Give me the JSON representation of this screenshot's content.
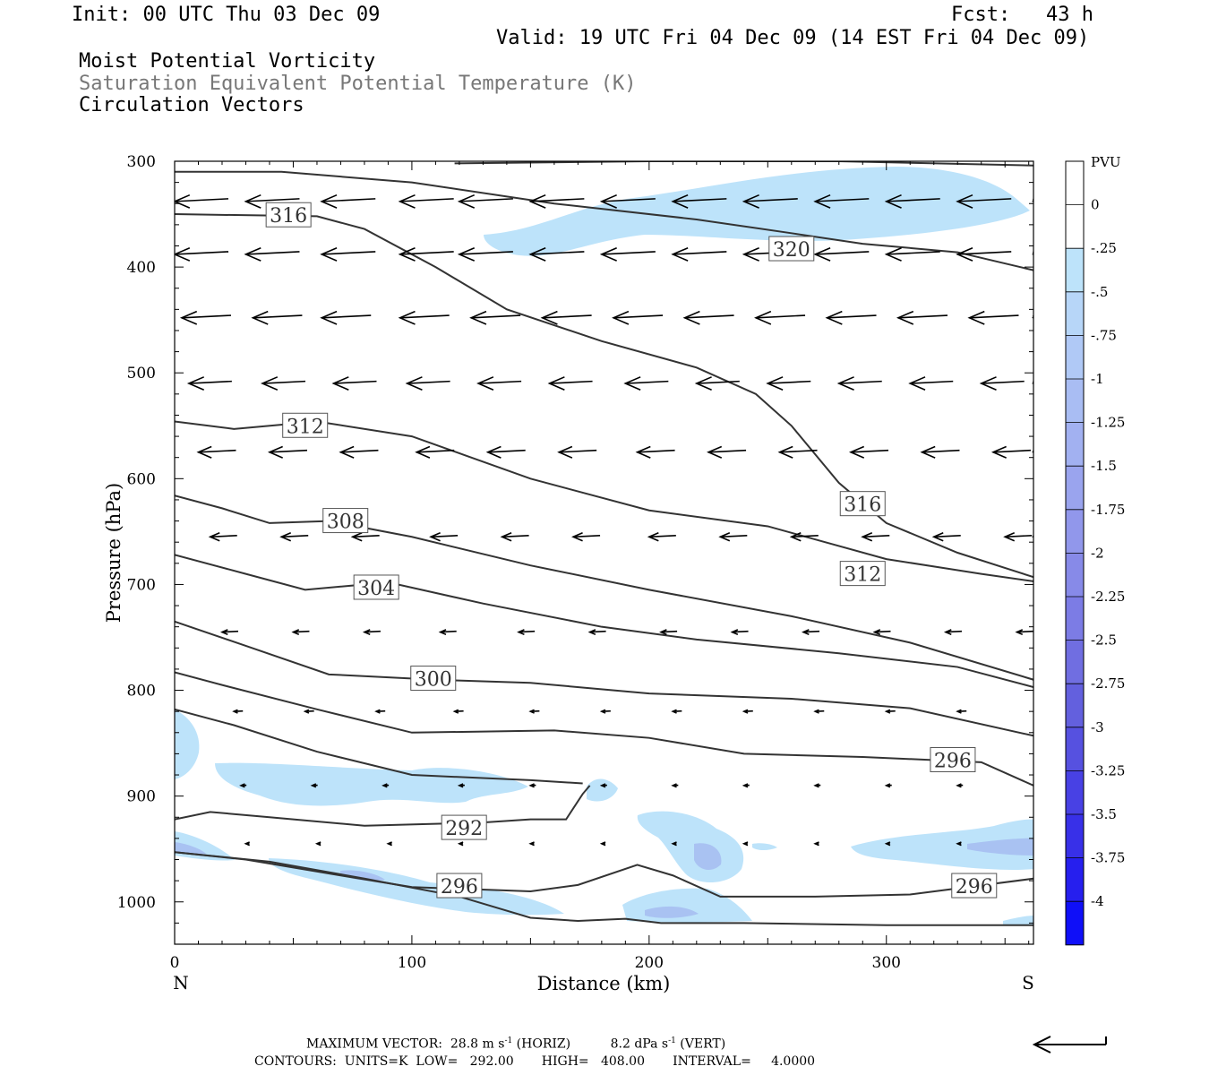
{
  "header": {
    "init": "Init: 00 UTC Thu 03 Dec 09",
    "fcst": "Fcst:   43 h",
    "valid": "Valid: 19 UTC Fri 04 Dec 09 (14 EST Fri 04 Dec 09)",
    "field1": "Moist Potential Vorticity",
    "field2": "Saturation Equivalent Potential Temperature (K)",
    "field3": "Circulation Vectors"
  },
  "footer": {
    "max_vector_label": "MAXIMUM VECTOR:",
    "max_vector_horiz": "28.8 m s",
    "horiz_tag": "(HORIZ)",
    "max_vector_vert": "8.2 dPa s",
    "vert_tag": "(VERT)",
    "exp": "-1",
    "contours": "CONTOURS:  UNITS=K  LOW=   292.00       HIGH=   408.00       INTERVAL=     4.0000"
  },
  "colors": {
    "contour": "#333333",
    "vector": "#000000",
    "pv_light": "#bde3fa",
    "pv_mid": "#a9c2f2"
  },
  "chart_data": {
    "type": "cross-section",
    "xlabel": "Distance (km)",
    "ylabel": "Pressure (hPa)",
    "xlim": [
      0,
      362
    ],
    "ylim": [
      1040,
      300
    ],
    "x_ticks": [
      {
        "v": 0,
        "label": "0"
      },
      {
        "v": 100,
        "label": "100"
      },
      {
        "v": 200,
        "label": "200"
      },
      {
        "v": 300,
        "label": "300"
      }
    ],
    "y_ticks": [
      {
        "v": 300,
        "label": "300"
      },
      {
        "v": 400,
        "label": "400"
      },
      {
        "v": 500,
        "label": "500"
      },
      {
        "v": 600,
        "label": "600"
      },
      {
        "v": 700,
        "label": "700"
      },
      {
        "v": 800,
        "label": "800"
      },
      {
        "v": 900,
        "label": "900"
      },
      {
        "v": 1000,
        "label": "1000"
      }
    ],
    "end_labels": {
      "left": "N",
      "right": "S"
    },
    "colorbar": {
      "unit": "PVU",
      "labels": [
        "0",
        "-.25",
        "-.5",
        "-.75",
        "-1",
        "-1.25",
        "-1.5",
        "-1.75",
        "-2",
        "-2.25",
        "-2.5",
        "-2.75",
        "-3",
        "-3.25",
        "-3.5",
        "-3.75",
        "-4"
      ],
      "colors": [
        "#ffffff",
        "#ffffff",
        "#bde3fa",
        "#b7d6f8",
        "#b0c9f6",
        "#a9bdf3",
        "#a2b1f1",
        "#9aa4ee",
        "#9197eb",
        "#878ae8",
        "#7c7ce5",
        "#706ee1",
        "#6360de",
        "#5651e0",
        "#4841e4",
        "#3830e8",
        "#261fee",
        "#0f0ff8"
      ]
    },
    "contours": [
      {
        "label": "320",
        "points": [
          [
            0,
            310
          ],
          [
            45,
            310
          ],
          [
            100,
            320
          ],
          [
            160,
            340
          ],
          [
            220,
            355
          ],
          [
            260,
            368
          ],
          [
            290,
            378
          ],
          [
            330,
            386
          ],
          [
            362,
            403
          ]
        ],
        "labels_at": [
          [
            260,
            383
          ]
        ]
      },
      {
        "label": "320",
        "points": [
          [
            118,
            302
          ],
          [
            200,
            300
          ],
          [
            280,
            300
          ],
          [
            362,
            304
          ]
        ],
        "labels_at": []
      },
      {
        "label": "316",
        "points": [
          [
            0,
            350
          ],
          [
            60,
            352
          ],
          [
            80,
            364
          ],
          [
            110,
            400
          ],
          [
            140,
            440
          ],
          [
            180,
            470
          ],
          [
            220,
            495
          ],
          [
            245,
            520
          ],
          [
            260,
            550
          ],
          [
            280,
            604
          ],
          [
            300,
            642
          ],
          [
            330,
            670
          ],
          [
            362,
            693
          ]
        ],
        "labels_at": [
          [
            48,
            351
          ],
          [
            290,
            624
          ]
        ]
      },
      {
        "label": "312",
        "points": [
          [
            0,
            546
          ],
          [
            25,
            553
          ],
          [
            60,
            546
          ],
          [
            100,
            560
          ],
          [
            150,
            600
          ],
          [
            200,
            630
          ],
          [
            250,
            645
          ],
          [
            300,
            676
          ],
          [
            340,
            690
          ],
          [
            362,
            697
          ]
        ],
        "labels_at": [
          [
            55,
            550
          ],
          [
            290,
            690
          ]
        ]
      },
      {
        "label": "308",
        "points": [
          [
            0,
            616
          ],
          [
            20,
            628
          ],
          [
            40,
            642
          ],
          [
            65,
            640
          ],
          [
            100,
            655
          ],
          [
            150,
            682
          ],
          [
            200,
            705
          ],
          [
            260,
            730
          ],
          [
            310,
            755
          ],
          [
            362,
            790
          ]
        ],
        "labels_at": [
          [
            72,
            640
          ]
        ]
      },
      {
        "label": "304",
        "points": [
          [
            0,
            672
          ],
          [
            30,
            690
          ],
          [
            55,
            705
          ],
          [
            90,
            698
          ],
          [
            130,
            718
          ],
          [
            180,
            740
          ],
          [
            220,
            752
          ],
          [
            280,
            765
          ],
          [
            330,
            778
          ],
          [
            362,
            797
          ]
        ],
        "labels_at": [
          [
            85,
            703
          ]
        ]
      },
      {
        "label": "300",
        "points": [
          [
            0,
            735
          ],
          [
            30,
            758
          ],
          [
            65,
            785
          ],
          [
            110,
            790
          ],
          [
            150,
            793
          ],
          [
            200,
            803
          ],
          [
            260,
            808
          ],
          [
            310,
            817
          ],
          [
            362,
            843
          ]
        ],
        "labels_at": [
          [
            109,
            789
          ]
        ]
      },
      {
        "label": "296",
        "points": [
          [
            0,
            783
          ],
          [
            20,
            795
          ],
          [
            60,
            818
          ],
          [
            100,
            840
          ],
          [
            160,
            838
          ],
          [
            200,
            845
          ],
          [
            240,
            860
          ],
          [
            290,
            863
          ],
          [
            340,
            868
          ],
          [
            362,
            890
          ]
        ],
        "labels_at": [
          [
            328,
            866
          ]
        ]
      },
      {
        "label": "296",
        "points": [
          [
            0,
            818
          ],
          [
            25,
            833
          ],
          [
            60,
            858
          ],
          [
            100,
            880
          ],
          [
            150,
            885
          ],
          [
            172,
            888
          ]
        ],
        "labels_at": []
      },
      {
        "label": "292",
        "points": [
          [
            0,
            922
          ],
          [
            15,
            915
          ],
          [
            40,
            920
          ],
          [
            80,
            928
          ],
          [
            130,
            925
          ],
          [
            150,
            922
          ],
          [
            165,
            922
          ],
          [
            172,
            898
          ],
          [
            175,
            890
          ]
        ],
        "labels_at": [
          [
            122,
            930
          ]
        ]
      },
      {
        "label": "296",
        "points": [
          [
            0,
            953
          ],
          [
            30,
            960
          ],
          [
            70,
            975
          ],
          [
            100,
            986
          ],
          [
            150,
            990
          ],
          [
            170,
            984
          ],
          [
            195,
            965
          ],
          [
            210,
            975
          ],
          [
            230,
            995
          ],
          [
            270,
            995
          ],
          [
            310,
            993
          ],
          [
            362,
            978
          ]
        ],
        "labels_at": [
          [
            120,
            985
          ],
          [
            337,
            985
          ]
        ]
      },
      {
        "label": "",
        "points": [
          [
            0,
            953
          ],
          [
            40,
            962
          ],
          [
            80,
            978
          ],
          [
            120,
            995
          ],
          [
            150,
            1015
          ],
          [
            170,
            1018
          ],
          [
            190,
            1016
          ],
          [
            205,
            1020
          ],
          [
            240,
            1020
          ],
          [
            300,
            1022
          ],
          [
            362,
            1022
          ]
        ],
        "labels_at": []
      }
    ],
    "vectors_note": "Circulation vectors point toward the left (northward) throughout the section",
    "pv_regions": "Light blue areas (-0.25 to -0.75 PVU) near 300-370 hPa between 130-355 km and below 850 hPa"
  }
}
